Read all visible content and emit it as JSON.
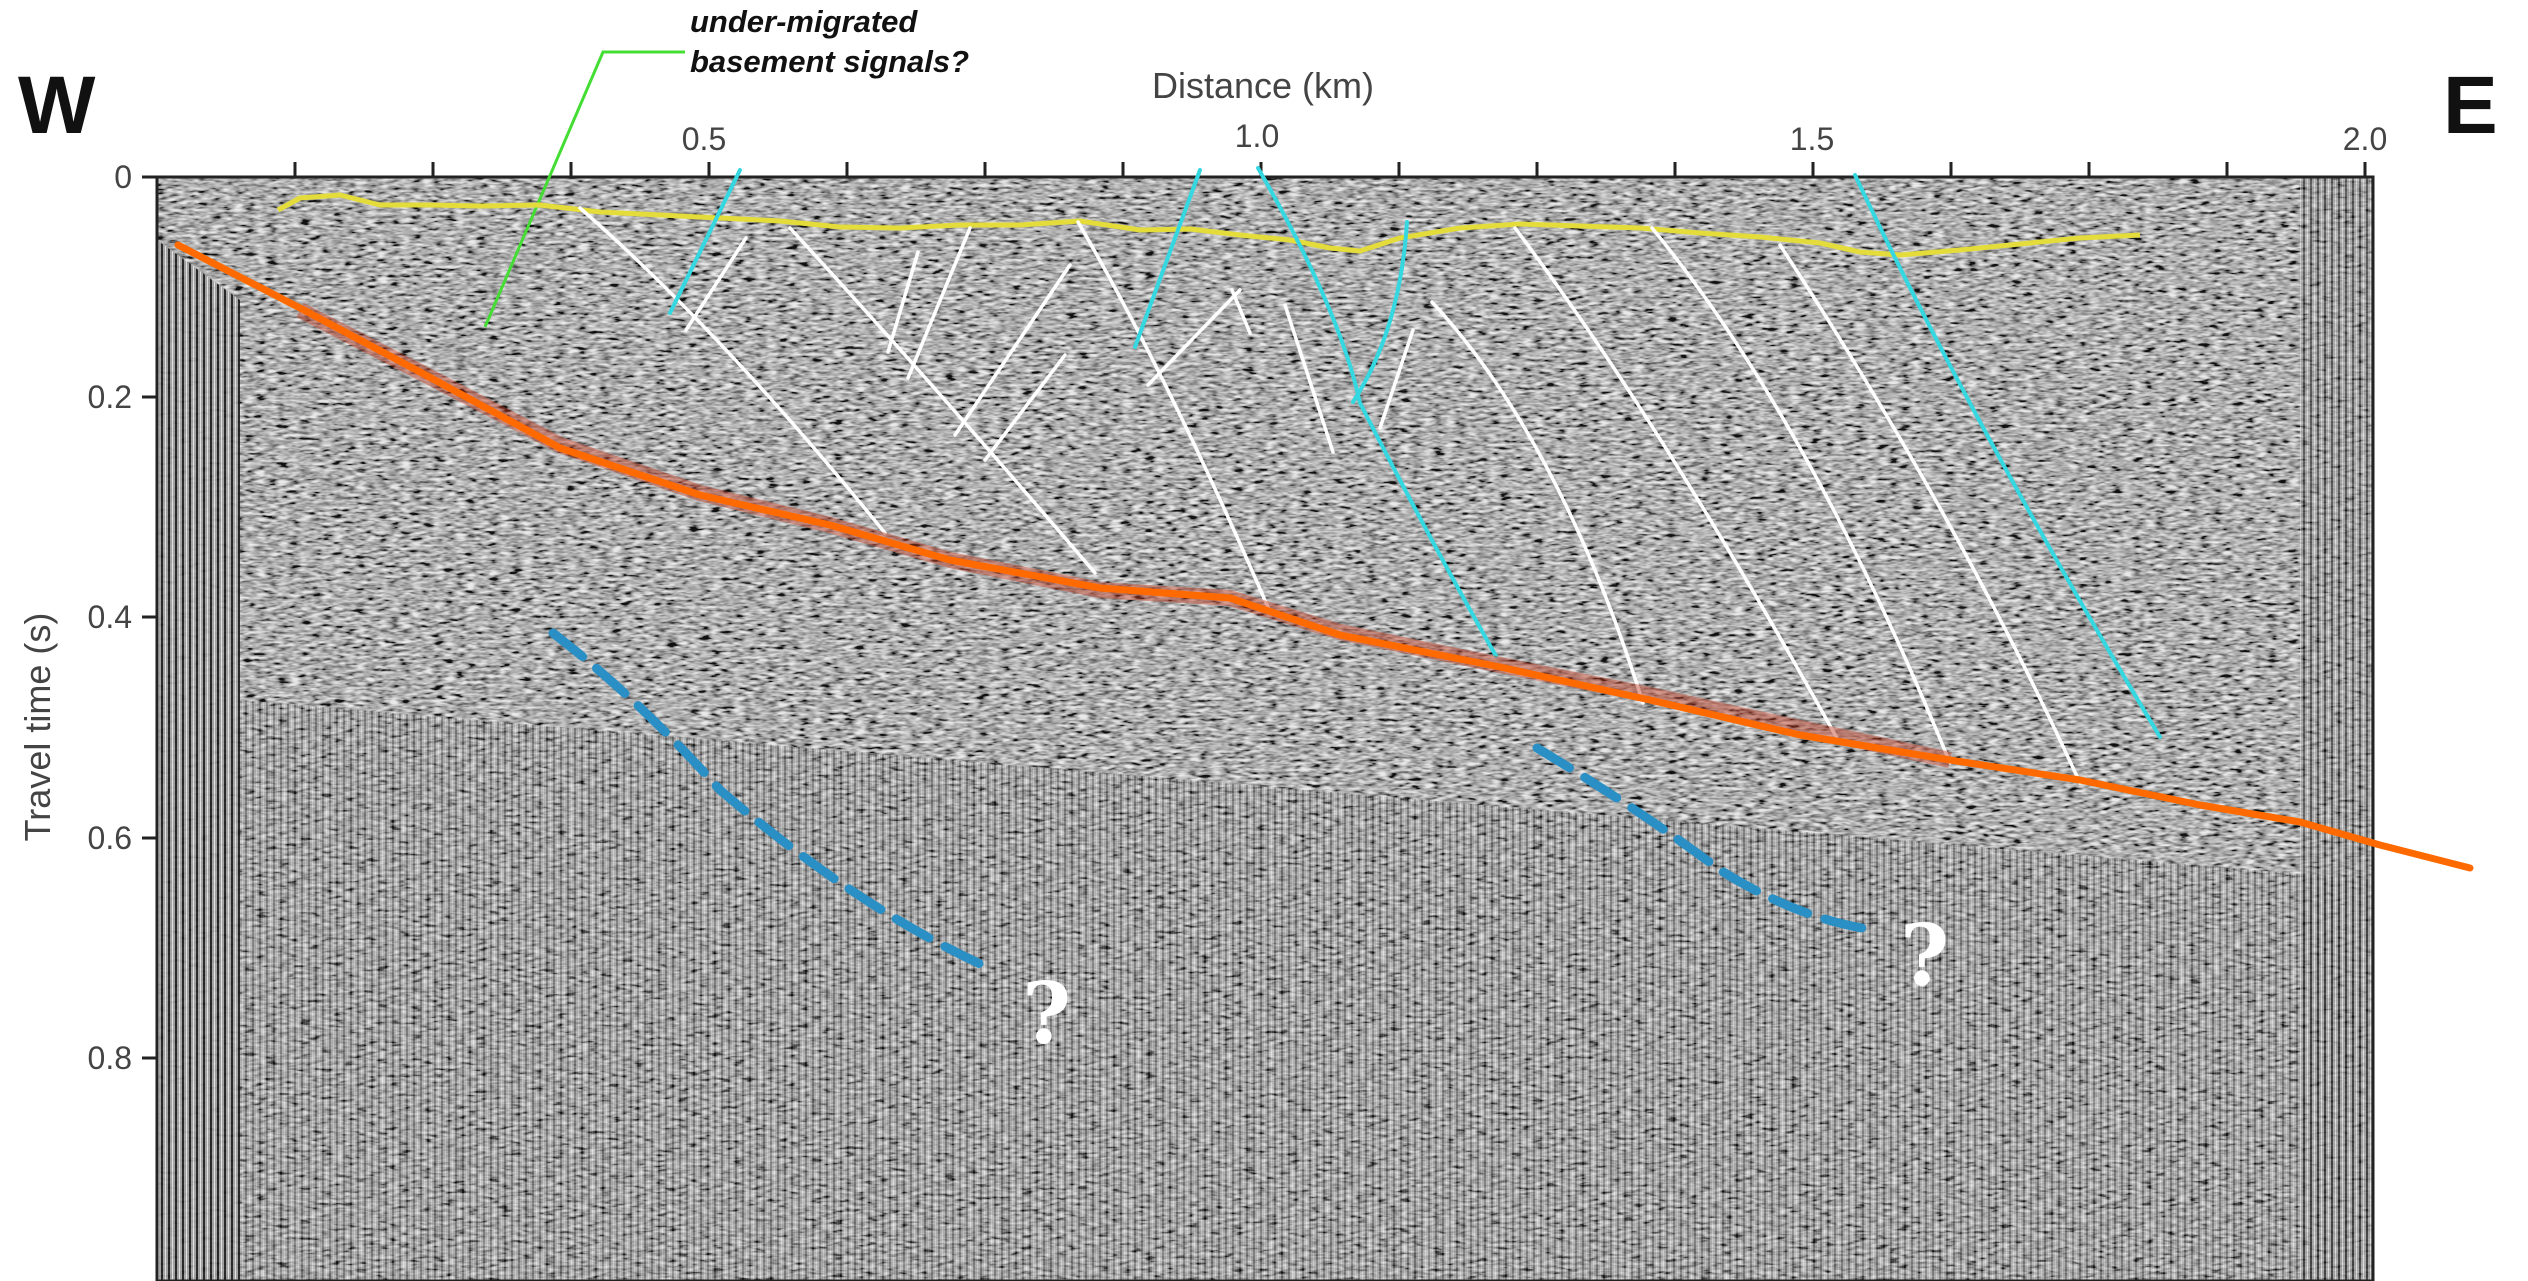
{
  "labels": {
    "west": "W",
    "east": "E",
    "x_axis_title": "Distance (km)",
    "y_axis_title": "Travel time (s)",
    "annotation_line1": "under-migrated",
    "annotation_line2": "basement signals?",
    "question_mark": "?"
  },
  "x_ticks": [
    {
      "value": 0.5,
      "label": "0.5"
    },
    {
      "value": 1.0,
      "label": "1.0"
    },
    {
      "value": 1.5,
      "label": "1.5"
    },
    {
      "value": 2.0,
      "label": "2.0"
    }
  ],
  "y_ticks": [
    {
      "value": 0,
      "label": "0"
    },
    {
      "value": 0.2,
      "label": "0.2"
    },
    {
      "value": 0.4,
      "label": "0.4"
    },
    {
      "value": 0.6,
      "label": "0.6"
    },
    {
      "value": 0.8,
      "label": "0.8"
    }
  ],
  "colors": {
    "seafloor": "#e3dc3a",
    "basement": "#ff6a00",
    "fault_white": "#ffffff",
    "fault_cyan": "#35d8e0",
    "deep_reflector": "#2a8fc4",
    "annotation_leader": "#44dd33",
    "panel_bg": "#6b6b6b"
  }
}
